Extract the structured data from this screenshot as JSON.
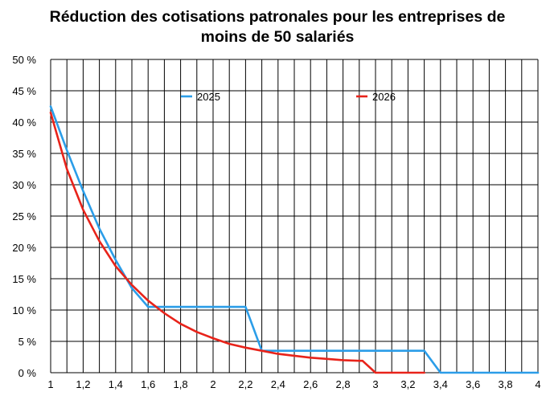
{
  "chart_data": {
    "type": "line",
    "title_line1": "Réduction des cotisations patronales pour les entreprises de",
    "title_line2": "moins de 50 salariés",
    "xlabel": "",
    "ylabel": "",
    "xlim": [
      1,
      4
    ],
    "ylim": [
      0,
      50
    ],
    "x_ticks": [
      "1",
      "1,2",
      "1,4",
      "1,6",
      "1,8",
      "2",
      "2,2",
      "2,4",
      "2,6",
      "2,8",
      "3",
      "3,2",
      "3,4",
      "3,6",
      "3,8",
      "4"
    ],
    "y_ticks": [
      "0 %",
      "5 %",
      "10 %",
      "15 %",
      "20 %",
      "25 %",
      "30 %",
      "35 %",
      "40 %",
      "45 %",
      "50 %"
    ],
    "grid": true,
    "legend_position": "top",
    "series": [
      {
        "name": "2025",
        "color": "#2b9de8",
        "points": [
          [
            1,
            42.5
          ],
          [
            1.1,
            35.5
          ],
          [
            1.2,
            29
          ],
          [
            1.3,
            23
          ],
          [
            1.4,
            18
          ],
          [
            1.5,
            13.5
          ],
          [
            1.6,
            10.5
          ],
          [
            2.2,
            10.5
          ],
          [
            2.3,
            3.5
          ],
          [
            3.3,
            3.5
          ],
          [
            3.4,
            0
          ],
          [
            4,
            0
          ]
        ]
      },
      {
        "name": "2026",
        "color": "#e8231a",
        "points": [
          [
            1,
            41.5
          ],
          [
            1.1,
            32.5
          ],
          [
            1.2,
            26
          ],
          [
            1.3,
            21
          ],
          [
            1.4,
            17
          ],
          [
            1.5,
            14
          ],
          [
            1.6,
            11.5
          ],
          [
            1.7,
            9.5
          ],
          [
            1.8,
            7.8
          ],
          [
            1.9,
            6.5
          ],
          [
            2,
            5.5
          ],
          [
            2.1,
            4.6
          ],
          [
            2.2,
            4
          ],
          [
            2.3,
            3.5
          ],
          [
            2.4,
            3
          ],
          [
            2.5,
            2.7
          ],
          [
            2.6,
            2.4
          ],
          [
            2.7,
            2.2
          ],
          [
            2.8,
            2
          ],
          [
            2.9,
            1.9
          ],
          [
            2.92,
            1.9
          ],
          [
            3,
            0
          ],
          [
            3.3,
            0
          ]
        ]
      }
    ]
  }
}
